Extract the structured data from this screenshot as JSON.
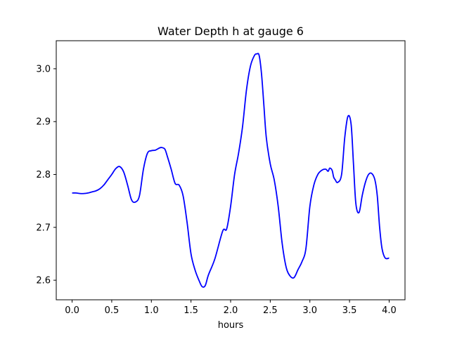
{
  "chart_data": {
    "type": "line",
    "title": "Water Depth h at gauge 6",
    "xlabel": "hours",
    "ylabel": "",
    "xlim": [
      -0.2,
      4.2
    ],
    "ylim": [
      2.563,
      3.053
    ],
    "xticks": [
      0.0,
      0.5,
      1.0,
      1.5,
      2.0,
      2.5,
      3.0,
      3.5,
      4.0
    ],
    "xtick_labels": [
      "0.0",
      "0.5",
      "1.0",
      "1.5",
      "2.0",
      "2.5",
      "3.0",
      "3.5",
      "4.0"
    ],
    "yticks": [
      2.6,
      2.7,
      2.8,
      2.9,
      3.0
    ],
    "ytick_labels": [
      "2.6",
      "2.7",
      "2.8",
      "2.9",
      "3.0"
    ],
    "grid": false,
    "line_color": "#0000ff",
    "series": [
      {
        "name": "",
        "x": [
          0.0,
          0.05,
          0.1,
          0.15,
          0.2,
          0.25,
          0.3,
          0.35,
          0.4,
          0.45,
          0.5,
          0.55,
          0.6,
          0.65,
          0.7,
          0.75,
          0.8,
          0.85,
          0.9,
          0.95,
          1.0,
          1.05,
          1.1,
          1.13,
          1.17,
          1.2,
          1.25,
          1.3,
          1.35,
          1.4,
          1.45,
          1.5,
          1.55,
          1.6,
          1.64,
          1.68,
          1.72,
          1.8,
          1.9,
          1.95,
          2.0,
          2.05,
          2.1,
          2.15,
          2.2,
          2.25,
          2.3,
          2.33,
          2.36,
          2.39,
          2.42,
          2.45,
          2.5,
          2.55,
          2.6,
          2.65,
          2.7,
          2.75,
          2.8,
          2.85,
          2.9,
          2.95,
          3.0,
          3.05,
          3.1,
          3.15,
          3.2,
          3.23,
          3.25,
          3.28,
          3.3,
          3.32,
          3.35,
          3.4,
          3.44,
          3.48,
          3.52,
          3.55,
          3.58,
          3.62,
          3.66,
          3.7,
          3.74,
          3.78,
          3.82,
          3.85,
          3.88,
          3.91,
          3.95,
          4.0
        ],
        "y": [
          2.765,
          2.765,
          2.764,
          2.764,
          2.765,
          2.767,
          2.769,
          2.773,
          2.78,
          2.79,
          2.8,
          2.811,
          2.815,
          2.805,
          2.78,
          2.752,
          2.748,
          2.76,
          2.81,
          2.84,
          2.845,
          2.846,
          2.85,
          2.851,
          2.848,
          2.835,
          2.81,
          2.783,
          2.78,
          2.76,
          2.71,
          2.65,
          2.62,
          2.6,
          2.588,
          2.59,
          2.61,
          2.64,
          2.693,
          2.697,
          2.74,
          2.8,
          2.84,
          2.89,
          2.96,
          3.005,
          3.025,
          3.028,
          3.025,
          2.99,
          2.93,
          2.87,
          2.82,
          2.79,
          2.74,
          2.67,
          2.625,
          2.608,
          2.605,
          2.62,
          2.635,
          2.66,
          2.74,
          2.78,
          2.8,
          2.808,
          2.81,
          2.806,
          2.812,
          2.808,
          2.795,
          2.79,
          2.785,
          2.8,
          2.87,
          2.91,
          2.895,
          2.82,
          2.745,
          2.728,
          2.76,
          2.785,
          2.8,
          2.802,
          2.79,
          2.76,
          2.7,
          2.66,
          2.642,
          2.642
        ]
      }
    ]
  }
}
